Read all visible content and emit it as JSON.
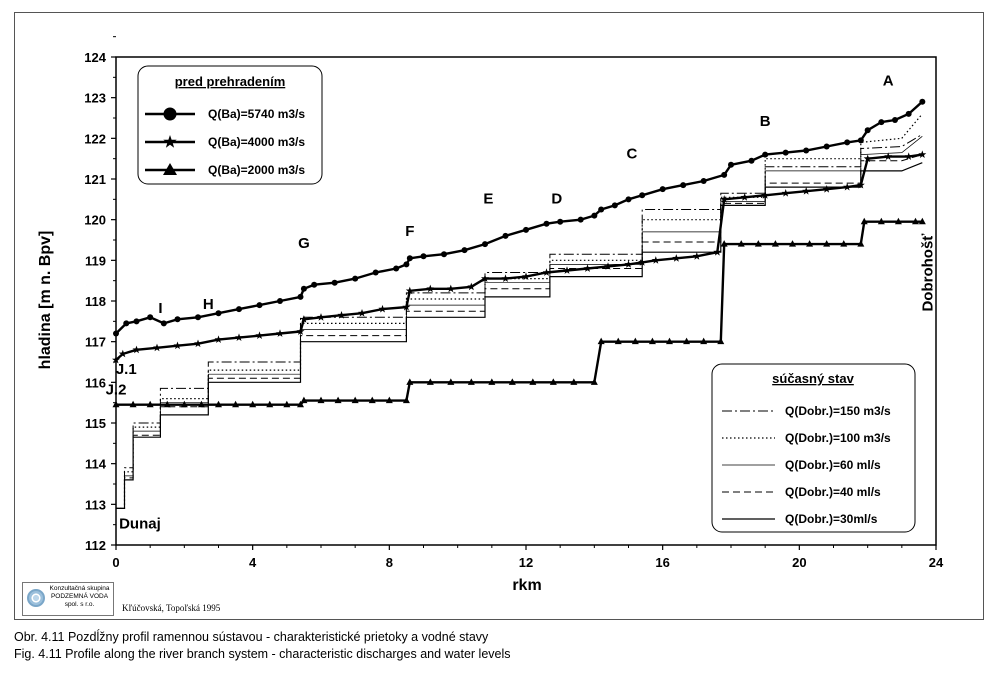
{
  "caption_sk": "Obr. 4.11  Pozdĺžny profil ramennou sústavou - charakteristické prietoky a vodné stavy",
  "caption_en": "Fig. 4.11  Profile along the river branch system - characteristic discharges and water levels",
  "logo": {
    "lines": [
      "Konzultačná skupina",
      "PODZEMNÁ VODA",
      "spol. s r.o."
    ]
  },
  "author_note": "Kľúčovská, Topoľská 1995",
  "chart_data": {
    "type": "line",
    "xlabel": "rkm",
    "ylabel": "hladina [m n. Bpv]",
    "xlim": [
      0,
      24
    ],
    "ylim": [
      112,
      124
    ],
    "xticks": [
      0,
      4,
      8,
      12,
      16,
      20,
      24
    ],
    "yticks": [
      112,
      113,
      114,
      115,
      116,
      117,
      118,
      119,
      120,
      121,
      122,
      123,
      124
    ],
    "grid": false,
    "legend_top": {
      "title": "pred prehradením",
      "placement": "top-left",
      "entries": [
        {
          "label": "Q(Ba)=5740 m3/s",
          "marker": "circle"
        },
        {
          "label": "Q(Ba)=4000 m3/s",
          "marker": "star"
        },
        {
          "label": "Q(Ba)=2000 m3/s",
          "marker": "triangle"
        }
      ]
    },
    "legend_bottom": {
      "title": "súčasný stav",
      "placement": "bottom-right",
      "entries": [
        {
          "label": "Q(Dobr.)=150 m3/s",
          "dash": "dashdot"
        },
        {
          "label": "Q(Dobr.)=100 m3/s",
          "dash": "dotted"
        },
        {
          "label": "Q(Dobr.)=60 ml/s",
          "dash": "thin"
        },
        {
          "label": "Q(Dobr.)=40 ml/s",
          "dash": "dashed"
        },
        {
          "label": "Q(Dobr.)=30ml/s",
          "dash": "solid"
        }
      ]
    },
    "annotations": [
      {
        "text": "A",
        "x": 22.6,
        "y": 123.3
      },
      {
        "text": "B",
        "x": 19.0,
        "y": 122.3
      },
      {
        "text": "C",
        "x": 15.1,
        "y": 121.5
      },
      {
        "text": "D",
        "x": 12.9,
        "y": 120.4
      },
      {
        "text": "E",
        "x": 10.9,
        "y": 120.4
      },
      {
        "text": "F",
        "x": 8.6,
        "y": 119.6
      },
      {
        "text": "G",
        "x": 5.5,
        "y": 119.3
      },
      {
        "text": "H",
        "x": 2.7,
        "y": 117.8
      },
      {
        "text": "I",
        "x": 1.3,
        "y": 117.7
      },
      {
        "text": "J.1",
        "x": 0.3,
        "y": 116.2
      },
      {
        "text": "J.2",
        "x": 0.0,
        "y": 115.7
      },
      {
        "text": "Dunaj",
        "x": 0.7,
        "y": 112.4
      },
      {
        "text": "Dobrohošť",
        "x": 23.9,
        "y": 118.7,
        "vertical": true
      }
    ],
    "series": [
      {
        "name": "Q(Ba)=5740 m3/s",
        "marker": "circle",
        "x": [
          0.0,
          0.3,
          0.6,
          1.0,
          1.4,
          1.8,
          2.4,
          3.0,
          3.6,
          4.2,
          4.8,
          5.4,
          5.5,
          5.8,
          6.4,
          7.0,
          7.6,
          8.2,
          8.5,
          8.6,
          9.0,
          9.6,
          10.2,
          10.8,
          11.4,
          12.0,
          12.6,
          13.0,
          13.6,
          14.0,
          14.2,
          14.6,
          15.0,
          15.4,
          16.0,
          16.6,
          17.2,
          17.8,
          18.0,
          18.6,
          19.0,
          19.6,
          20.2,
          20.8,
          21.4,
          21.8,
          22.0,
          22.4,
          22.8,
          23.2,
          23.6
        ],
        "y": [
          117.2,
          117.45,
          117.5,
          117.6,
          117.45,
          117.55,
          117.6,
          117.7,
          117.8,
          117.9,
          118.0,
          118.1,
          118.3,
          118.4,
          118.45,
          118.55,
          118.7,
          118.8,
          118.9,
          119.05,
          119.1,
          119.15,
          119.25,
          119.4,
          119.6,
          119.75,
          119.9,
          119.95,
          120.0,
          120.1,
          120.25,
          120.35,
          120.5,
          120.6,
          120.75,
          120.85,
          120.95,
          121.1,
          121.35,
          121.45,
          121.6,
          121.65,
          121.7,
          121.8,
          121.9,
          121.95,
          122.2,
          122.4,
          122.45,
          122.6,
          122.9
        ]
      },
      {
        "name": "Q(Ba)=4000 m3/s",
        "marker": "star",
        "x": [
          0.0,
          0.2,
          0.6,
          1.2,
          1.8,
          2.4,
          3.0,
          3.6,
          4.2,
          4.8,
          5.4,
          5.5,
          6.0,
          6.6,
          7.2,
          7.8,
          8.5,
          8.6,
          9.2,
          9.8,
          10.4,
          10.8,
          11.4,
          12.0,
          12.6,
          13.2,
          13.8,
          14.4,
          15.0,
          15.4,
          15.8,
          16.4,
          17.0,
          17.6,
          17.8,
          18.4,
          19.0,
          19.6,
          20.2,
          20.8,
          21.4,
          21.8,
          22.0,
          22.6,
          23.2,
          23.6
        ],
        "y": [
          116.55,
          116.7,
          116.8,
          116.85,
          116.9,
          116.95,
          117.05,
          117.1,
          117.15,
          117.2,
          117.25,
          117.55,
          117.6,
          117.65,
          117.7,
          117.8,
          117.85,
          118.25,
          118.3,
          118.3,
          118.35,
          118.55,
          118.55,
          118.6,
          118.7,
          118.75,
          118.8,
          118.85,
          118.9,
          118.95,
          119.0,
          119.05,
          119.1,
          119.2,
          120.5,
          120.55,
          120.6,
          120.65,
          120.7,
          120.75,
          120.8,
          120.85,
          121.5,
          121.55,
          121.55,
          121.6
        ]
      },
      {
        "name": "Q(Ba)=2000 m3/s",
        "marker": "triangle",
        "x": [
          0.0,
          0.5,
          1.0,
          1.5,
          2.0,
          2.5,
          3.0,
          3.5,
          4.0,
          4.5,
          5.0,
          5.4,
          5.5,
          6.0,
          6.5,
          7.0,
          7.5,
          8.0,
          8.5,
          8.6,
          9.2,
          9.8,
          10.4,
          11.0,
          11.6,
          12.2,
          12.8,
          13.4,
          14.0,
          14.2,
          14.7,
          15.2,
          15.7,
          16.2,
          16.7,
          17.2,
          17.7,
          17.8,
          18.3,
          18.8,
          19.3,
          19.8,
          20.3,
          20.8,
          21.3,
          21.8,
          21.9,
          22.4,
          22.9,
          23.4,
          23.6
        ],
        "y": [
          115.45,
          115.45,
          115.45,
          115.45,
          115.45,
          115.45,
          115.45,
          115.45,
          115.45,
          115.45,
          115.45,
          115.45,
          115.55,
          115.55,
          115.55,
          115.55,
          115.55,
          115.55,
          115.55,
          116.0,
          116.0,
          116.0,
          116.0,
          116.0,
          116.0,
          116.0,
          116.0,
          116.0,
          116.0,
          117.0,
          117.0,
          117.0,
          117.0,
          117.0,
          117.0,
          117.0,
          117.0,
          119.4,
          119.4,
          119.4,
          119.4,
          119.4,
          119.4,
          119.4,
          119.4,
          119.4,
          119.95,
          119.95,
          119.95,
          119.95,
          119.95
        ]
      },
      {
        "name": "Q(Dobr.)=150 m3/s",
        "dash": "dashdot",
        "x": [
          0.0,
          0.25,
          0.25,
          0.5,
          0.5,
          1.3,
          1.3,
          2.7,
          2.7,
          5.4,
          5.4,
          8.5,
          8.5,
          10.8,
          10.8,
          12.7,
          12.7,
          15.4,
          15.4,
          17.7,
          17.7,
          19.0,
          19.0,
          21.8,
          21.8,
          23.0,
          23.6
        ],
        "y": [
          112.9,
          112.9,
          113.9,
          113.9,
          115.0,
          115.0,
          115.85,
          115.85,
          116.5,
          116.5,
          117.6,
          117.6,
          118.2,
          118.2,
          118.7,
          118.7,
          119.15,
          119.15,
          120.25,
          120.25,
          120.65,
          120.65,
          121.3,
          121.3,
          121.75,
          121.8,
          122.1
        ]
      },
      {
        "name": "Q(Dobr.)=100 m3/s",
        "dash": "dotted",
        "x": [
          0.0,
          0.25,
          0.25,
          0.5,
          0.5,
          1.3,
          1.3,
          2.7,
          2.7,
          5.4,
          5.4,
          8.5,
          8.5,
          10.8,
          10.8,
          12.7,
          12.7,
          15.4,
          15.4,
          17.7,
          17.7,
          19.0,
          19.0,
          21.8,
          21.8,
          23.0,
          23.6
        ],
        "y": [
          112.9,
          112.9,
          113.8,
          113.8,
          114.9,
          114.9,
          115.6,
          115.6,
          116.3,
          116.3,
          117.45,
          117.45,
          118.05,
          118.05,
          118.55,
          118.55,
          119.0,
          119.0,
          120.0,
          120.0,
          120.55,
          120.55,
          121.5,
          121.5,
          121.9,
          122.0,
          122.6
        ]
      },
      {
        "name": "Q(Dobr.)=60 ml/s",
        "dash": "thin",
        "x": [
          0.0,
          0.25,
          0.25,
          0.5,
          0.5,
          1.3,
          1.3,
          2.7,
          2.7,
          5.4,
          5.4,
          8.5,
          8.5,
          10.8,
          10.8,
          12.7,
          12.7,
          15.4,
          15.4,
          17.7,
          17.7,
          19.0,
          19.0,
          21.8,
          21.8,
          23.0,
          23.6
        ],
        "y": [
          112.9,
          112.9,
          113.7,
          113.7,
          114.8,
          114.8,
          115.5,
          115.5,
          116.2,
          116.2,
          117.3,
          117.3,
          117.9,
          117.9,
          118.45,
          118.45,
          118.9,
          118.9,
          119.7,
          119.7,
          120.45,
          120.45,
          121.2,
          121.2,
          121.6,
          121.65,
          122.05
        ]
      },
      {
        "name": "Q(Dobr.)=40 ml/s",
        "dash": "dashed",
        "x": [
          0.0,
          0.25,
          0.25,
          0.5,
          0.5,
          1.3,
          1.3,
          2.7,
          2.7,
          5.4,
          5.4,
          8.5,
          8.5,
          10.8,
          10.8,
          12.7,
          12.7,
          15.4,
          15.4,
          17.7,
          17.7,
          19.0,
          19.0,
          21.8,
          21.8,
          23.0,
          23.6
        ],
        "y": [
          112.9,
          112.9,
          113.65,
          113.65,
          114.7,
          114.7,
          115.4,
          115.4,
          116.1,
          116.1,
          117.15,
          117.15,
          117.75,
          117.75,
          118.3,
          118.3,
          118.8,
          118.8,
          119.45,
          119.45,
          120.4,
          120.4,
          120.9,
          120.9,
          121.45,
          121.45,
          121.6
        ]
      },
      {
        "name": "Q(Dobr.)=30ml/s",
        "dash": "solid",
        "x": [
          0.0,
          0.25,
          0.25,
          0.5,
          0.5,
          1.3,
          1.3,
          2.7,
          2.7,
          5.4,
          5.4,
          8.5,
          8.5,
          10.8,
          10.8,
          12.7,
          12.7,
          15.4,
          15.4,
          17.7,
          17.7,
          19.0,
          19.0,
          21.8,
          21.8,
          23.0,
          23.6
        ],
        "y": [
          112.9,
          112.9,
          113.6,
          113.6,
          114.65,
          114.65,
          115.2,
          115.2,
          116.0,
          116.0,
          117.0,
          117.0,
          117.6,
          117.6,
          118.1,
          118.1,
          118.6,
          118.6,
          119.2,
          119.2,
          120.35,
          120.35,
          120.8,
          120.8,
          121.2,
          121.2,
          121.4
        ]
      }
    ]
  }
}
